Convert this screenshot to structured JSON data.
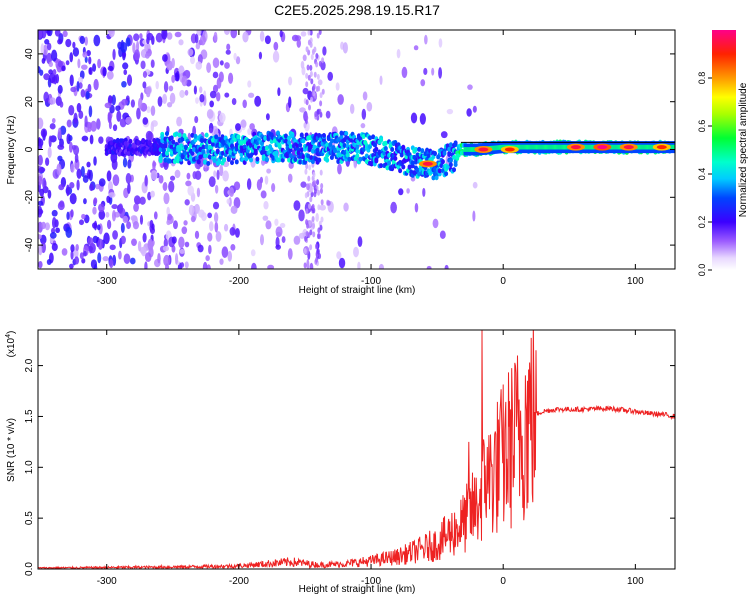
{
  "title": "C2E5.2025.298.19.15.R17",
  "chart_data": [
    {
      "type": "heatmap",
      "xlabel": "Height of straight line (km)",
      "ylabel": "Frequency (Hz)",
      "xlim": [
        -352,
        130
      ],
      "ylim": [
        -50,
        50
      ],
      "x_ticks": [
        -300,
        -200,
        -100,
        0,
        100
      ],
      "x_tick_labels": [
        "-300",
        "-200",
        "-100",
        "0",
        "100"
      ],
      "y_ticks": [
        -40,
        -20,
        0,
        20,
        40
      ],
      "y_tick_labels": [
        "-40",
        "-20",
        "0",
        "20",
        "40"
      ],
      "colorbar": {
        "label": "Normalized spectral amplitude",
        "ticks": [
          0.0,
          0.2,
          0.4,
          0.6,
          0.8
        ],
        "tick_labels": [
          "0.0",
          "0.2",
          "0.4",
          "0.6",
          "0.8"
        ],
        "range": [
          0,
          1
        ]
      },
      "dominant_frequency_track": {
        "x": [
          -260,
          -230,
          -200,
          -180,
          -160,
          -140,
          -120,
          -100,
          -80,
          -70,
          -60,
          -50,
          -40,
          -35,
          -32,
          -20,
          0,
          20,
          40,
          60,
          80,
          100,
          130
        ],
        "y": [
          1,
          0,
          0,
          1,
          1,
          0,
          1,
          0,
          -3,
          -5,
          -6,
          -6,
          -4,
          -2,
          0,
          0,
          1,
          1,
          1,
          1,
          1,
          1,
          1
        ],
        "strong_peaks": [
          {
            "x": -57,
            "y": -6,
            "amplitude": 0.95
          },
          {
            "x": -15,
            "y": 0,
            "amplitude": 0.95
          },
          {
            "x": 5,
            "y": 0,
            "amplitude": 0.9
          },
          {
            "x": 55,
            "y": 1,
            "amplitude": 0.95
          },
          {
            "x": 75,
            "y": 1,
            "amplitude": 1.0
          },
          {
            "x": 95,
            "y": 1,
            "amplitude": 0.95
          },
          {
            "x": 120,
            "y": 1,
            "amplitude": 0.9
          }
        ]
      },
      "grid": false
    },
    {
      "type": "line",
      "xlabel": "Height of straight line (km)",
      "ylabel": "SNR (10 * v/v)",
      "y_multiplier_label": "(x10",
      "y_multiplier_exp": "4",
      "y_multiplier_close": ")",
      "xlim": [
        -352,
        130
      ],
      "ylim": [
        0,
        23500
      ],
      "x_ticks": [
        -300,
        -200,
        -100,
        0,
        100
      ],
      "x_tick_labels": [
        "-300",
        "-200",
        "-100",
        "0",
        "100"
      ],
      "y_ticks": [
        0,
        5000,
        10000,
        15000,
        20000
      ],
      "y_tick_labels": [
        "0.0",
        "0.5",
        "1.0",
        "1.5",
        "2.0"
      ],
      "color": "#ee2222",
      "series": [
        {
          "x": [
            -352,
            -300,
            -250,
            -200,
            -180,
            -160,
            -140,
            -120,
            -100,
            -80,
            -60,
            -50,
            -40,
            -30,
            -25,
            -20,
            -15,
            -10,
            -5,
            0,
            10,
            20,
            30,
            40,
            60,
            80,
            100,
            110,
            120,
            130
          ],
          "y": [
            100,
            150,
            200,
            300,
            500,
            700,
            400,
            500,
            800,
            1200,
            2000,
            2500,
            3500,
            4500,
            5500,
            6000,
            8000,
            9000,
            10000,
            11000,
            13000,
            15000,
            15500,
            15700,
            15700,
            15800,
            15500,
            15300,
            15200,
            15000
          ]
        }
      ],
      "spikes": [
        {
          "x": -26,
          "y": 12500
        },
        {
          "x": -16,
          "y": 23500
        },
        {
          "x": -12,
          "y": 12000
        }
      ],
      "grid": false
    }
  ]
}
